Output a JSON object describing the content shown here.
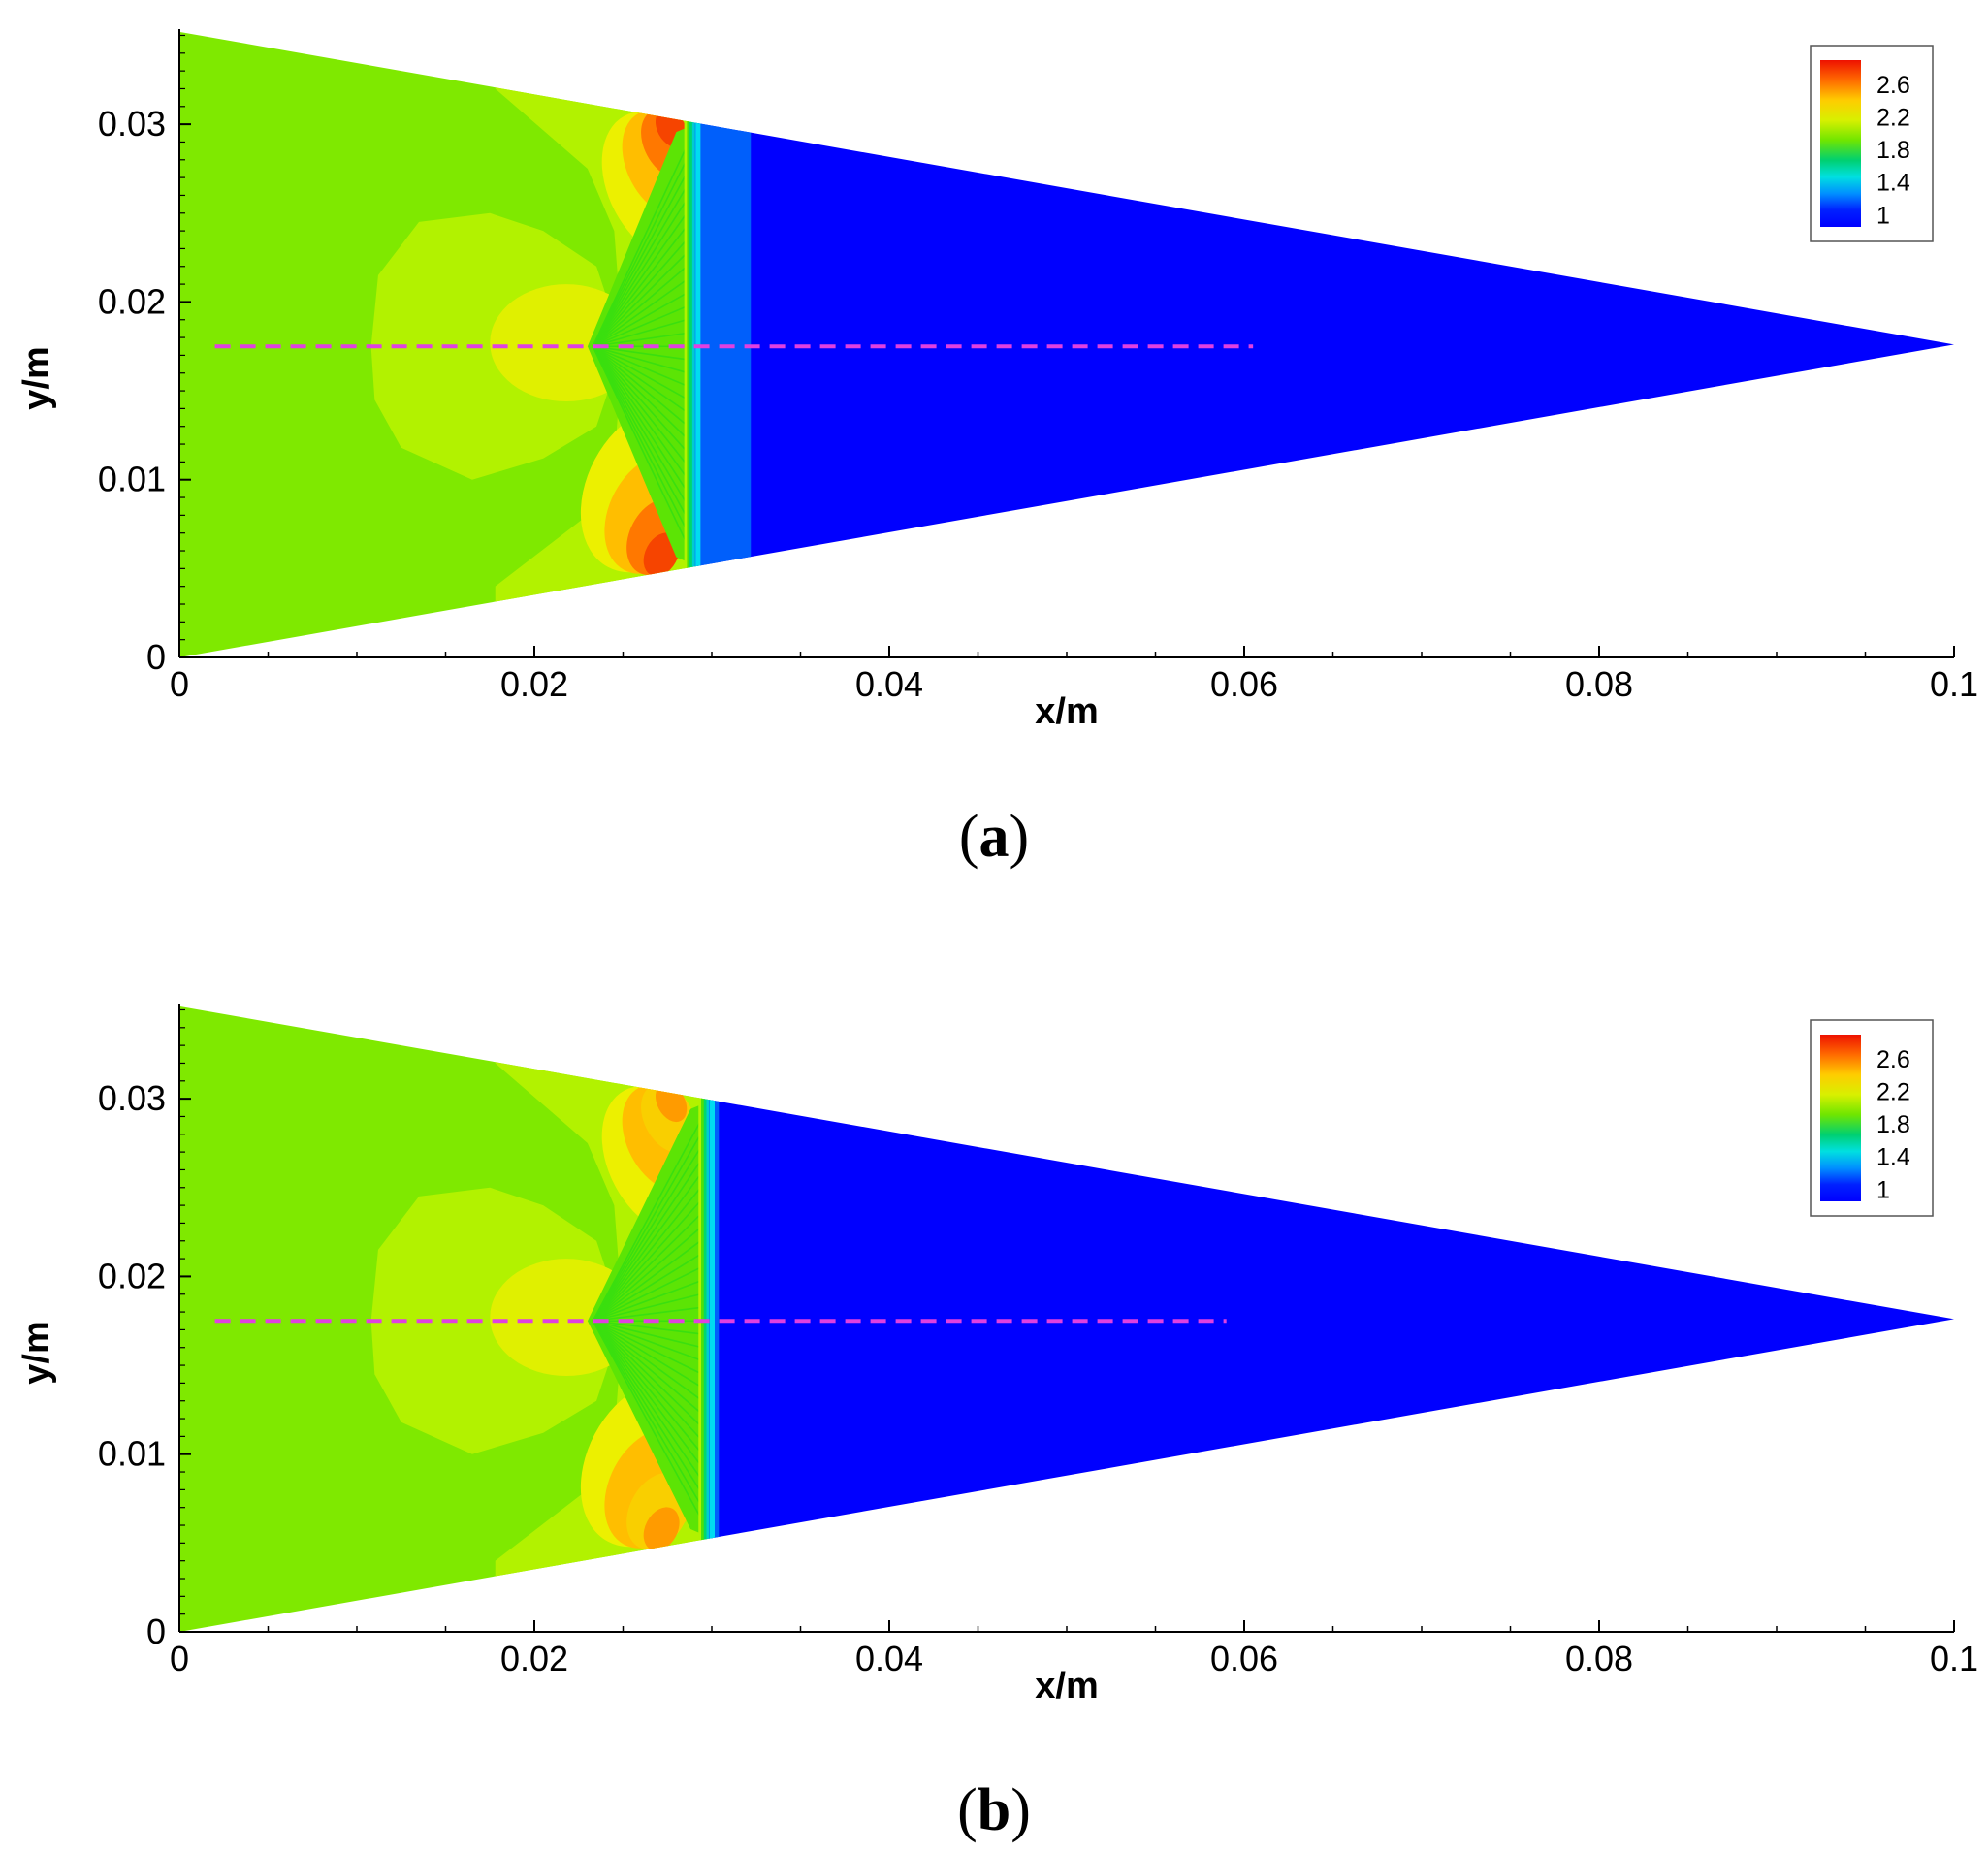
{
  "chart_data": [
    {
      "type": "heatmap",
      "panel_label": "a",
      "title": "",
      "xlabel": "x/m",
      "ylabel": "y/m",
      "xlim": [
        0,
        0.1
      ],
      "ylim": [
        0,
        0.035
      ],
      "x_ticks": [
        "0",
        "0.02",
        "0.04",
        "0.06",
        "0.08",
        "0.1"
      ],
      "x_tick_values": [
        0,
        0.02,
        0.04,
        0.06,
        0.08,
        0.1
      ],
      "y_ticks": [
        "0",
        "0.01",
        "0.02",
        "0.03"
      ],
      "y_tick_values": [
        0,
        0.01,
        0.02,
        0.03
      ],
      "grid": false,
      "domain_outline": [
        [
          0,
          0
        ],
        [
          0,
          0.0352
        ],
        [
          0.1,
          0.0176
        ]
      ],
      "colorbar": {
        "placement": "top-right",
        "labels": [
          "2.6",
          "2.2",
          "1.8",
          "1.4",
          "1"
        ],
        "label_values": [
          2.6,
          2.2,
          1.8,
          1.4,
          1.0
        ],
        "range": [
          1.0,
          2.8
        ]
      },
      "probe_line": {
        "style": "dashed",
        "color": "#e040e0",
        "x_start": 0.002,
        "x_end": 0.0605,
        "y": 0.0175
      },
      "front": {
        "x_top": 0.0292,
        "x_bottom": 0.0294,
        "y_top": 0.0301,
        "y_bottom": 0.0052,
        "trailing_band_x_end": 0.0322
      },
      "regions": {
        "inlet_value": 2.05,
        "mid_value": 2.2,
        "hot_spot_value": 2.7,
        "downstream_value": 1.0,
        "band_value": 1.25
      },
      "colors": {
        "blue": "#0000ff",
        "green": "#6ee600",
        "yellowgreen": "#b2f200",
        "yellow": "#ecf000",
        "orange": "#ff9900",
        "red": "#ee1100",
        "cyan": "#00dcf0",
        "dash": "#e040e0"
      }
    },
    {
      "type": "heatmap",
      "panel_label": "b",
      "title": "",
      "xlabel": "x/m",
      "ylabel": "y/m",
      "xlim": [
        0,
        0.1
      ],
      "ylim": [
        0,
        0.035
      ],
      "x_ticks": [
        "0",
        "0.02",
        "0.04",
        "0.06",
        "0.08",
        "0.1"
      ],
      "x_tick_values": [
        0,
        0.02,
        0.04,
        0.06,
        0.08,
        0.1
      ],
      "y_ticks": [
        "0",
        "0.01",
        "0.02",
        "0.03"
      ],
      "y_tick_values": [
        0,
        0.01,
        0.02,
        0.03
      ],
      "grid": false,
      "domain_outline": [
        [
          0,
          0
        ],
        [
          0,
          0.0352
        ],
        [
          0.1,
          0.0176
        ]
      ],
      "colorbar": {
        "placement": "top-right",
        "labels": [
          "2.6",
          "2.2",
          "1.8",
          "1.4",
          "1"
        ],
        "label_values": [
          2.6,
          2.2,
          1.8,
          1.4,
          1.0
        ],
        "range": [
          1.0,
          2.8
        ]
      },
      "probe_line": {
        "style": "dashed",
        "color": "#e040e0",
        "x_start": 0.002,
        "x_end": 0.059,
        "y": 0.0175
      },
      "front": {
        "x_top": 0.03,
        "x_bottom": 0.03,
        "y_top": 0.03,
        "y_bottom": 0.0052,
        "trailing_band_x_end": 0.0304
      },
      "regions": {
        "inlet_value": 2.05,
        "mid_value": 2.2,
        "hot_spot_value": 2.55,
        "downstream_value": 1.0,
        "band_value": 1.25
      },
      "colors": {
        "blue": "#0000ff",
        "green": "#6ee600",
        "yellowgreen": "#b2f200",
        "yellow": "#ecf000",
        "orange": "#ff9900",
        "red": "#ee1100",
        "cyan": "#00dcf0",
        "dash": "#e040e0"
      }
    }
  ]
}
